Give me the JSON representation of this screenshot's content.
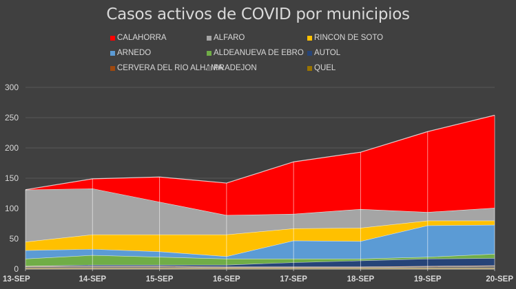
{
  "chart_data": {
    "type": "area",
    "stacked": true,
    "title": "Casos activos de COVID por municipios",
    "xlabel": "",
    "ylabel": "",
    "categories": [
      "13-SEP",
      "14-SEP",
      "15-SEP",
      "16-SEP",
      "17-SEP",
      "18-SEP",
      "19-SEP",
      "20-SEP"
    ],
    "ylim": [
      0,
      300
    ],
    "yticks": [
      "0",
      "50",
      "100",
      "150",
      "200",
      "250",
      "300"
    ],
    "grid": true,
    "legend_position": "top",
    "series": [
      {
        "name": "CALAHORRA",
        "color": "#ff0000",
        "values": [
          0,
          16,
          41,
          53,
          86,
          94,
          133,
          153
        ]
      },
      {
        "name": "ALFARO",
        "color": "#a5a5a5",
        "values": [
          86,
          76,
          54,
          32,
          24,
          31,
          14,
          21
        ]
      },
      {
        "name": "RINCON DE SOTO",
        "color": "#ffc000",
        "values": [
          14,
          24,
          28,
          36,
          20,
          22,
          8,
          7
        ]
      },
      {
        "name": "ARNEDO",
        "color": "#5b9bd5",
        "values": [
          14,
          10,
          9,
          4,
          30,
          29,
          52,
          48
        ]
      },
      {
        "name": "ALDEANUEVA DE EBRO",
        "color": "#70ad47",
        "values": [
          12,
          16,
          13,
          10,
          6,
          3,
          3,
          7
        ]
      },
      {
        "name": "AUTOL",
        "color": "#264478",
        "values": [
          0,
          2,
          2,
          3,
          7,
          10,
          12,
          12
        ]
      },
      {
        "name": "CERVERA DEL RIO ALHAMA",
        "color": "#9e480e",
        "values": [
          1,
          1,
          1,
          1,
          1,
          1,
          1,
          1
        ]
      },
      {
        "name": "PRADEJON",
        "color": "#636363",
        "values": [
          2,
          2,
          2,
          1,
          1,
          1,
          2,
          3
        ]
      },
      {
        "name": "QUEL",
        "color": "#997300",
        "values": [
          2,
          2,
          2,
          2,
          2,
          2,
          2,
          2
        ]
      }
    ]
  }
}
